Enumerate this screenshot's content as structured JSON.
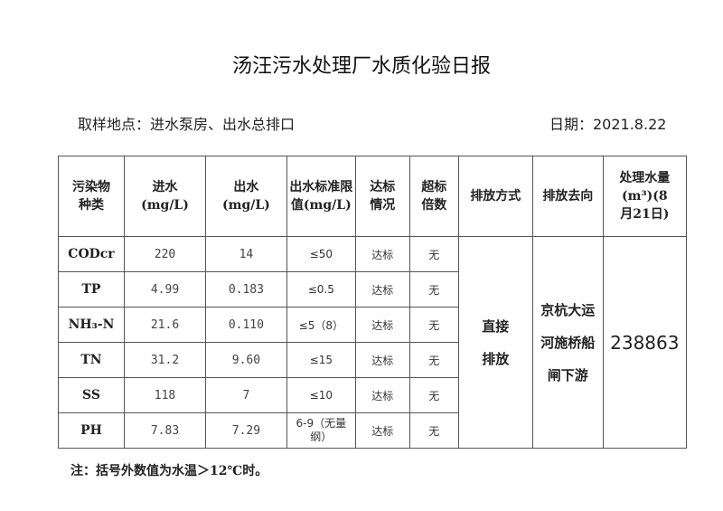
{
  "title": "汤汪污水处理厂水质化验日报",
  "site": "取样地点：进水泵房、出水总排口",
  "date": "日期：2021.8.22",
  "headers": [
    "污染物种类",
    "进水(mg/L)",
    "出水(mg/L)",
    "出水标准限值(mg/L)",
    "达标情况",
    "超标倍数",
    "排放方式",
    "排放去向",
    "处理水量(m³)(8月21日)"
  ],
  "rows": [
    {
      "name": "CODcr",
      "in": "220",
      "out": "14",
      "limit": "≤50",
      "status": "达标",
      "excess": "无"
    },
    {
      "name": "TP",
      "in": "4.99",
      "out": "0.183",
      "limit": "≤0.5",
      "status": "达标",
      "excess": "无"
    },
    {
      "name": "NH₃-N",
      "in": "21.6",
      "out": "0.110",
      "limit": "≤5（8）",
      "status": "达标",
      "excess": "无"
    },
    {
      "name": "TN",
      "in": "31.2",
      "out": "9.60",
      "limit": "≤15",
      "status": "达标",
      "excess": "无"
    },
    {
      "name": "SS",
      "in": "118",
      "out": "7",
      "limit": "≤10",
      "status": "达标",
      "excess": "无"
    },
    {
      "name": "PH",
      "in": "7.83",
      "out": "7.29",
      "limit": "6-9（无量纲）",
      "status": "达标",
      "excess": "无"
    }
  ],
  "discharge_method": "直接排放",
  "discharge_dest": "京杭大运河施桥船闸下游",
  "volume": "238863",
  "note": "注：括号外数值为水温＞12℃时。"
}
